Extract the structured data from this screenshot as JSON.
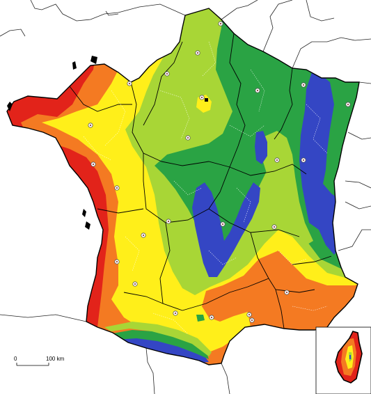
{
  "scale_bar": {
    "start_label": "0",
    "end_label": "100 km"
  },
  "palette": {
    "red": "#e2231a",
    "orange": "#f47a22",
    "yellow": "#ffef1a",
    "light_green": "#a8d636",
    "green": "#2aa344",
    "blue": "#3446c4",
    "border": "#000000",
    "sea": "#ffffff"
  },
  "icons": {
    "city_marker": "circle-dot-icon",
    "capital_marker": "black-square-icon"
  }
}
